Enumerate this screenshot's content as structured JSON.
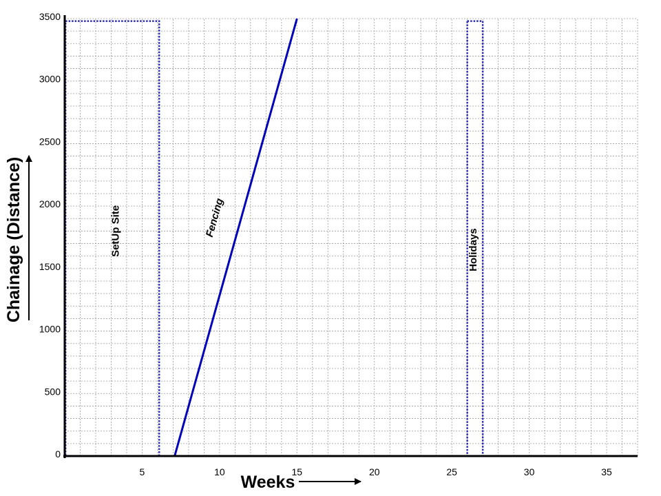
{
  "chart_data": {
    "type": "line",
    "title": "",
    "xlabel": "Weeks",
    "ylabel": "Chainage (Distance)",
    "xlim": [
      0,
      37
    ],
    "ylim": [
      0,
      3500
    ],
    "x_ticks": [
      5,
      10,
      15,
      20,
      25,
      30,
      35
    ],
    "y_ticks": [
      0,
      500,
      1000,
      1500,
      2000,
      2500,
      3000,
      3500
    ],
    "grid": true,
    "colors": {
      "activity": "#0000bb",
      "block": "#2a2ab0",
      "grid": "#9a9a9a",
      "axis": "#000000"
    },
    "series": [
      {
        "name": "Fencing",
        "points": [
          [
            7.1,
            0
          ],
          [
            15.0,
            3500
          ]
        ]
      }
    ],
    "blocks": [
      {
        "name": "Set Up Site",
        "label": "SetUp Site",
        "x": [
          0.05,
          6.1
        ],
        "y": [
          0,
          3480
        ]
      },
      {
        "name": "Holidays",
        "label": "Holidays",
        "x": [
          26.0,
          27.0
        ],
        "y": [
          0,
          3480
        ]
      }
    ]
  }
}
